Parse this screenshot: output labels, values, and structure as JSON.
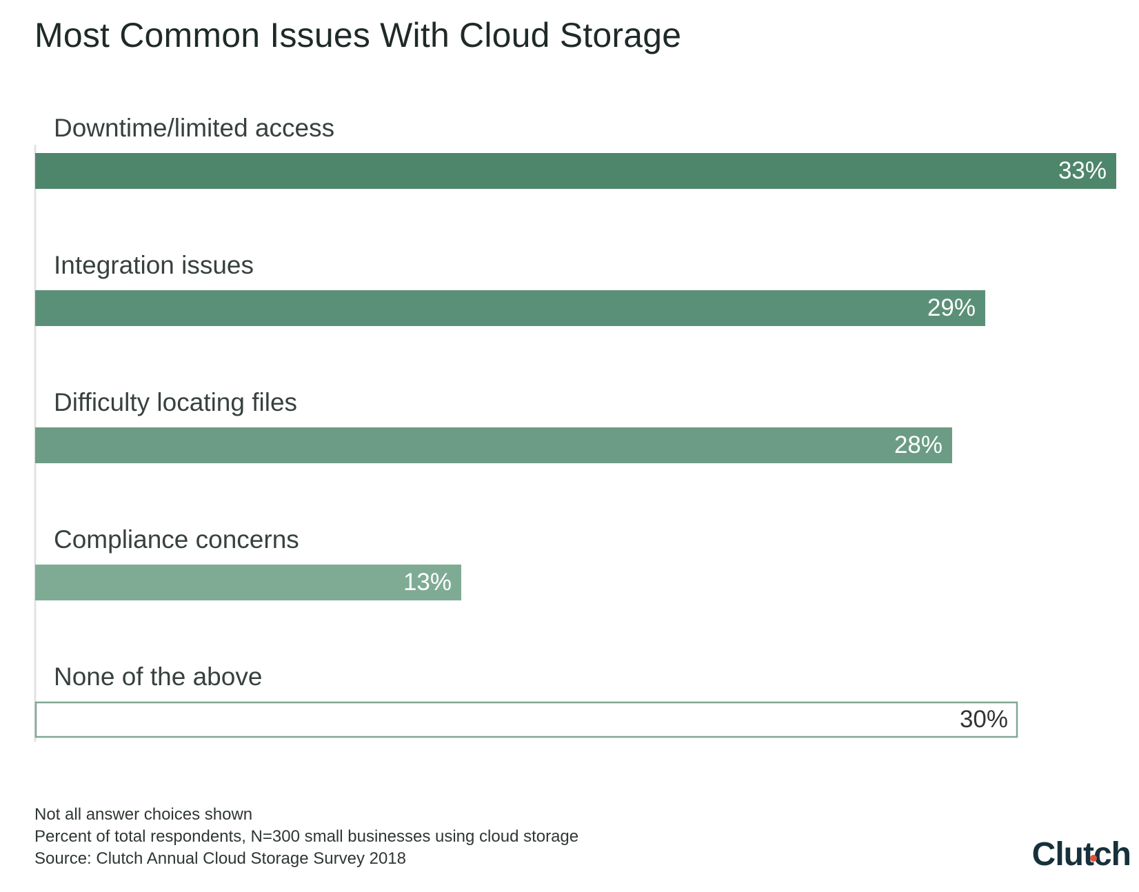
{
  "chart_data": {
    "type": "bar",
    "orientation": "horizontal",
    "title": "Most Common Issues With Cloud Storage",
    "categories": [
      "Downtime/limited access",
      "Integration issues",
      "Difficulty locating files",
      "Compliance concerns",
      "None of the above"
    ],
    "values": [
      33,
      29,
      28,
      13,
      30
    ],
    "value_labels": [
      "33%",
      "29%",
      "28%",
      "13%",
      "30%"
    ],
    "unit": "%",
    "xlim": [
      0,
      33
    ],
    "grid": false,
    "legend": "none",
    "bar_colors": [
      "#4e866b",
      "#5b9078",
      "#6c9c85",
      "#7fab95",
      "#ffffff"
    ],
    "bar_outline_color": "#7fa792",
    "label_color_inside": "#ffffff",
    "label_color_outline": "#333333"
  },
  "footnotes": [
    "Not all answer choices shown",
    "Percent of total respondents, N=300 small businesses using cloud storage",
    "Source: Clutch Annual Cloud Storage Survey 2018"
  ],
  "brand": {
    "name": "Clutch",
    "dot_color": "#e2533d"
  }
}
